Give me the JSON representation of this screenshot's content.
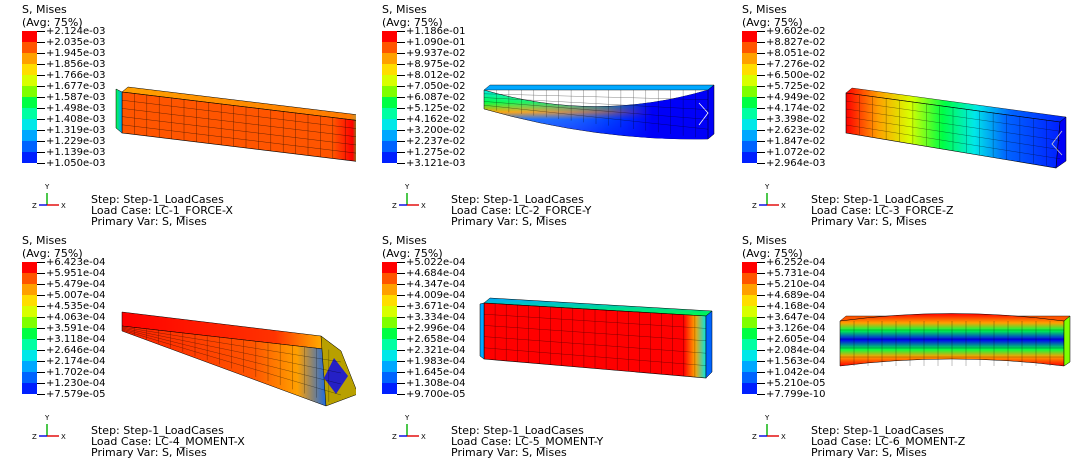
{
  "colormap": [
    "#ff0000",
    "#ff5500",
    "#ffa000",
    "#ffdd00",
    "#d8ff00",
    "#7fff00",
    "#00ff44",
    "#00ffa2",
    "#00e8e8",
    "#00a8ff",
    "#0064ff",
    "#0020ff",
    "#0000f8"
  ],
  "panels": [
    {
      "title_var": "S, Mises",
      "title_avg": "(Avg: 75%)",
      "legend": [
        "+2.124e-03",
        "+2.035e-03",
        "+1.945e-03",
        "+1.856e-03",
        "+1.766e-03",
        "+1.677e-03",
        "+1.587e-03",
        "+1.498e-03",
        "+1.408e-03",
        "+1.319e-03",
        "+1.229e-03",
        "+1.139e-03",
        "+1.050e-03"
      ],
      "step": "Step: Step-1_LoadCases",
      "load_case": "Load Case: LC-1_FORCE-X",
      "primary_var": "Primary Var: S, Mises"
    },
    {
      "title_var": "S, Mises",
      "title_avg": "(Avg: 75%)",
      "legend": [
        "+1.186e-01",
        "+1.090e-01",
        "+9.937e-02",
        "+8.975e-02",
        "+8.012e-02",
        "+7.050e-02",
        "+6.087e-02",
        "+5.125e-02",
        "+4.162e-02",
        "+3.200e-02",
        "+2.237e-02",
        "+1.275e-02",
        "+3.121e-03"
      ],
      "step": "Step: Step-1_LoadCases",
      "load_case": "Load Case: LC-2_FORCE-Y",
      "primary_var": "Primary Var: S, Mises"
    },
    {
      "title_var": "S, Mises",
      "title_avg": "(Avg: 75%)",
      "legend": [
        "+9.602e-02",
        "+8.827e-02",
        "+8.051e-02",
        "+7.276e-02",
        "+6.500e-02",
        "+5.725e-02",
        "+4.949e-02",
        "+4.174e-02",
        "+3.398e-02",
        "+2.623e-02",
        "+1.847e-02",
        "+1.072e-02",
        "+2.964e-03"
      ],
      "step": "Step: Step-1_LoadCases",
      "load_case": "Load Case: LC-3_FORCE-Z",
      "primary_var": "Primary Var: S, Mises"
    },
    {
      "title_var": "S, Mises",
      "title_avg": "(Avg: 75%)",
      "legend": [
        "+6.423e-04",
        "+5.951e-04",
        "+5.479e-04",
        "+5.007e-04",
        "+4.535e-04",
        "+4.063e-04",
        "+3.591e-04",
        "+3.118e-04",
        "+2.646e-04",
        "+2.174e-04",
        "+1.702e-04",
        "+1.230e-04",
        "+7.579e-05"
      ],
      "step": "Step: Step-1_LoadCases",
      "load_case": "Load Case: LC-4_MOMENT-X",
      "primary_var": "Primary Var: S, Mises"
    },
    {
      "title_var": "S, Mises",
      "title_avg": "(Avg: 75%)",
      "legend": [
        "+5.022e-04",
        "+4.684e-04",
        "+4.347e-04",
        "+4.009e-04",
        "+3.671e-04",
        "+3.334e-04",
        "+2.996e-04",
        "+2.658e-04",
        "+2.321e-04",
        "+1.983e-04",
        "+1.645e-04",
        "+1.308e-04",
        "+9.700e-05"
      ],
      "step": "Step: Step-1_LoadCases",
      "load_case": "Load Case: LC-5_MOMENT-Y",
      "primary_var": "Primary Var: S, Mises"
    },
    {
      "title_var": "S, Mises",
      "title_avg": "(Avg: 75%)",
      "legend": [
        "+6.252e-04",
        "+5.731e-04",
        "+5.210e-04",
        "+4.689e-04",
        "+4.168e-04",
        "+3.647e-04",
        "+3.126e-04",
        "+2.605e-04",
        "+2.084e-04",
        "+1.563e-04",
        "+1.042e-04",
        "+5.210e-05",
        "+7.799e-10"
      ],
      "step": "Step: Step-1_LoadCases",
      "load_case": "Load Case: LC-6_MOMENT-Z",
      "primary_var": "Primary Var: S, Mises"
    }
  ],
  "triad": {
    "y": "Y",
    "z": "Z",
    "x": "X"
  }
}
